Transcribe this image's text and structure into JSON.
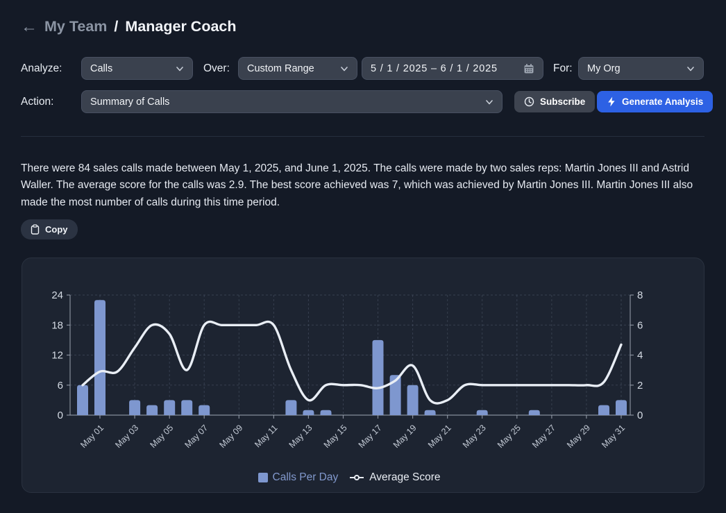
{
  "colors": {
    "page_bg": "#141a26",
    "accent_blue": "#2d61e4",
    "bar_color": "#7e97cf",
    "line_color": "#e9eef5",
    "legend_blue": "#8299cd"
  },
  "header": {
    "back_arrow": "←",
    "breadcrumb_parent": "My Team",
    "breadcrumb_separator": "/",
    "page_title": "Manager Coach"
  },
  "controls": {
    "analyze_label": "Analyze:",
    "analyze_value": "Calls",
    "over_label": "Over:",
    "over_value": "Custom Range",
    "date_range_value": "5 / 1 / 2025  –  6 / 1 / 2025",
    "for_label": "For:",
    "for_value": "My Org",
    "action_label": "Action:",
    "action_value": "Summary of Calls",
    "subscribe_label": "Subscribe",
    "generate_label": "Generate Analysis"
  },
  "summary": {
    "text": "There were 84 sales calls made between May 1, 2025, and June 1, 2025. The calls were made by two sales reps: Martin Jones III and Astrid Waller. The average score for the calls was 2.9. The best score achieved was 7, which was achieved by Martin Jones III. Martin Jones III also made the most number of calls during this time period.",
    "copy_label": "Copy"
  },
  "chart_data": {
    "type": "bar-line-combo",
    "categories": [
      "Apr 30",
      "May 01",
      "May 02",
      "May 03",
      "May 04",
      "May 05",
      "May 06",
      "May 07",
      "May 08",
      "May 09",
      "May 10",
      "May 11",
      "May 12",
      "May 13",
      "May 14",
      "May 15",
      "May 16",
      "May 17",
      "May 18",
      "May 19",
      "May 20",
      "May 21",
      "May 22",
      "May 23",
      "May 24",
      "May 25",
      "May 26",
      "May 27",
      "May 28",
      "May 29",
      "May 30",
      "May 31"
    ],
    "x_tick_start": 1,
    "x_tick_step": 2,
    "left_axis": {
      "label": "Calls Per Day",
      "ticks": [
        0,
        6,
        12,
        18,
        24
      ],
      "max": 24
    },
    "right_axis": {
      "label": "Average Score",
      "ticks": [
        0,
        2,
        4,
        6,
        8
      ],
      "max": 8
    },
    "grid": true,
    "legend_position": "bottom",
    "series": [
      {
        "name": "Calls Per Day",
        "type": "bar",
        "axis": "left",
        "values": [
          6,
          23,
          0,
          3,
          2,
          3,
          3,
          2,
          0,
          0,
          0,
          0,
          3,
          1,
          1,
          0,
          0,
          15,
          8,
          6,
          1,
          0,
          0,
          1,
          0,
          0,
          1,
          0,
          0,
          0,
          2,
          3
        ]
      },
      {
        "name": "Average Score",
        "type": "line",
        "axis": "right",
        "values": [
          2.0,
          2.9,
          2.9,
          4.5,
          6.0,
          5.4,
          3.0,
          6.0,
          6.0,
          6.0,
          6.0,
          6.0,
          3.0,
          1.0,
          2.0,
          2.0,
          2.0,
          1.8,
          2.3,
          3.3,
          1.0,
          1.0,
          2.0,
          2.0,
          2.0,
          2.0,
          2.0,
          2.0,
          2.0,
          2.0,
          2.2,
          4.7
        ]
      }
    ]
  }
}
